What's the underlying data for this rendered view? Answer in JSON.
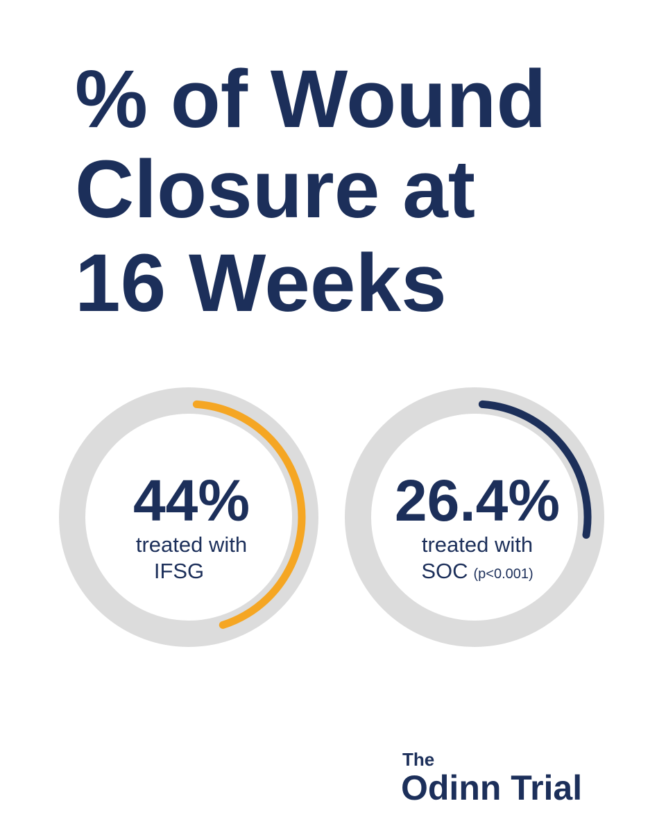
{
  "title_lines": [
    "% of Wound",
    "Closure at",
    "16 Weeks"
  ],
  "chart_data": [
    {
      "type": "donut",
      "values": [
        44
      ],
      "value_labels": [
        "44%"
      ],
      "color": "#f5a623",
      "track_color": "#dcdcdc",
      "caption": [
        "treated with",
        "IFSG"
      ]
    },
    {
      "type": "donut",
      "values": [
        26.4
      ],
      "value_labels": [
        "26.4%"
      ],
      "color": "#1c2f5a",
      "track_color": "#dcdcdc",
      "caption": [
        "treated with",
        "SOC"
      ],
      "note": "(p<0.001)"
    }
  ],
  "footer": {
    "small": "The",
    "large": "Odinn Trial"
  }
}
